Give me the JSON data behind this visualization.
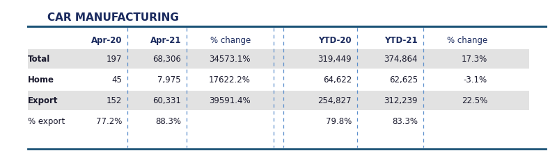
{
  "title": "CAR MANUFACTURING",
  "title_color": "#1a2a5e",
  "header_color": "#1a2a5e",
  "text_color": "#1a1a2e",
  "col_headers": [
    "Apr-20",
    "Apr-21",
    "% change",
    "YTD-20",
    "YTD-21",
    "% change"
  ],
  "row_labels": [
    "Total",
    "Home",
    "Export",
    "% export"
  ],
  "rows": [
    [
      "197",
      "68,306",
      "34573.1%",
      "319,449",
      "374,864",
      "17.3%"
    ],
    [
      "45",
      "7,975",
      "17622.2%",
      "64,622",
      "62,625",
      "-3.1%"
    ],
    [
      "152",
      "60,331",
      "39591.4%",
      "254,827",
      "312,239",
      "22.5%"
    ],
    [
      "77.2%",
      "88.3%",
      "",
      "79.8%",
      "83.3%",
      ""
    ]
  ],
  "shaded_rows": [
    0,
    2
  ],
  "shade_color": "#e2e2e2",
  "bg_color": "#ffffff",
  "top_line_color": "#1a5276",
  "bottom_line_color": "#1a5276",
  "dashed_col_color": "#5b8fcc",
  "title_fontsize": 11,
  "header_fontsize": 8.5,
  "data_fontsize": 8.5,
  "fig_width": 8.0,
  "fig_height": 2.18,
  "dpi": 100
}
